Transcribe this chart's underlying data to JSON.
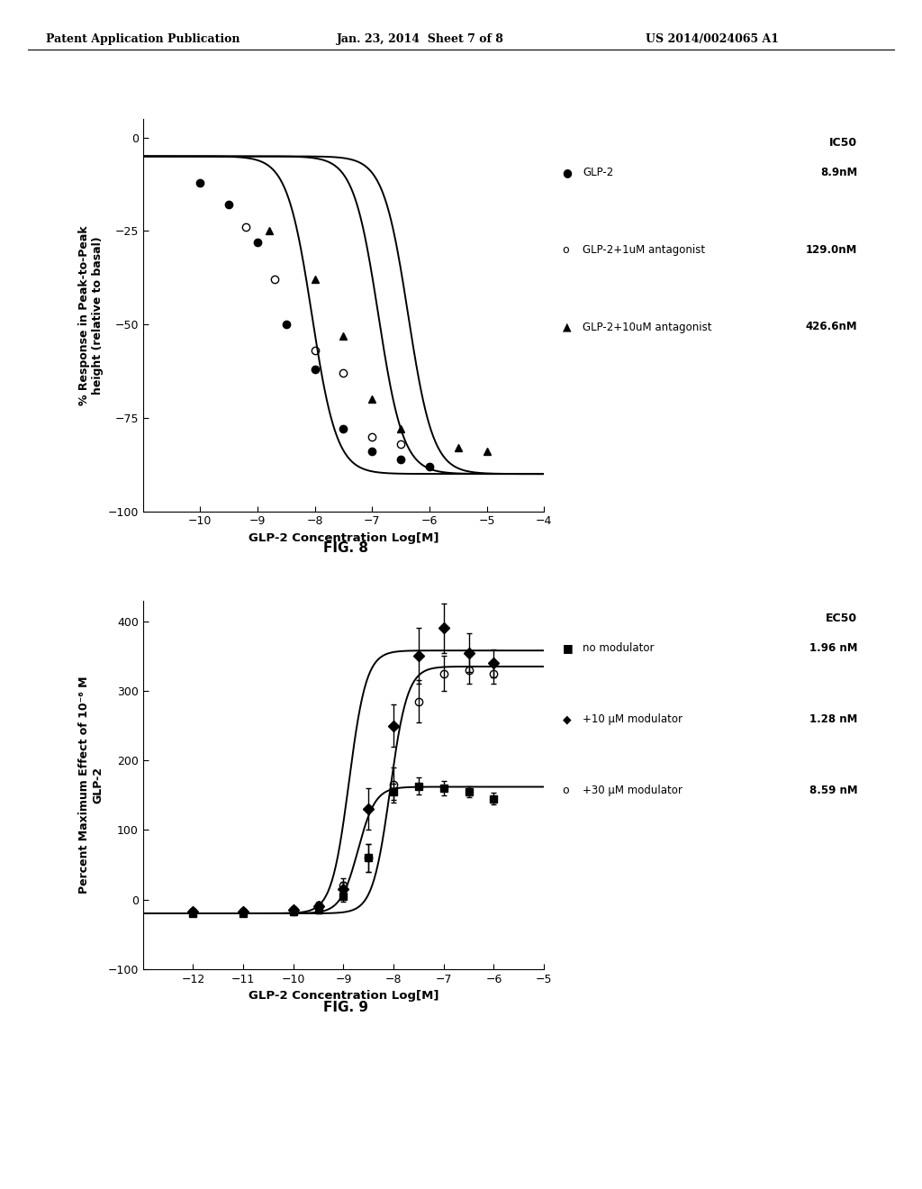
{
  "header_left": "Patent Application Publication",
  "header_mid": "Jan. 23, 2014  Sheet 7 of 8",
  "header_right": "US 2014/0024065 A1",
  "fig8": {
    "title": "FIG. 8",
    "xlabel": "GLP-2 Concentration Log[M]",
    "ylabel": "% Response in Peak-to-Peak\nheight (relative to basal)",
    "xlim": [
      -11,
      -4
    ],
    "ylim": [
      -100,
      5
    ],
    "xticks": [
      -10,
      -9,
      -8,
      -7,
      -6,
      -5,
      -4
    ],
    "yticks": [
      0,
      -25,
      -50,
      -75,
      -100
    ],
    "series": [
      {
        "label": "GLP-2",
        "ic50_label": "8.9nM",
        "marker": "o",
        "markersize": 6,
        "fillstyle": "full",
        "ic50_log": -8.05,
        "top": -5,
        "bottom": -90,
        "hill": 2.0,
        "points_x": [
          -10.0,
          -9.5,
          -9.0,
          -8.5,
          -8.0,
          -7.5,
          -7.0,
          -6.5,
          -6.0
        ],
        "points_y": [
          -12,
          -18,
          -28,
          -50,
          -62,
          -78,
          -84,
          -86,
          -88
        ]
      },
      {
        "label": "GLP-2+1uM antagonist",
        "ic50_label": "129.0nM",
        "marker": "o",
        "markersize": 6,
        "fillstyle": "none",
        "ic50_log": -6.89,
        "top": -5,
        "bottom": -90,
        "hill": 2.0,
        "points_x": [
          -9.2,
          -8.7,
          -8.0,
          -7.5,
          -7.0,
          -6.5
        ],
        "points_y": [
          -24,
          -38,
          -57,
          -63,
          -80,
          -82
        ]
      },
      {
        "label": "GLP-2+10uM antagonist",
        "ic50_label": "426.6nM",
        "marker": "^",
        "markersize": 6,
        "fillstyle": "full",
        "ic50_log": -6.37,
        "top": -5,
        "bottom": -90,
        "hill": 2.0,
        "points_x": [
          -8.8,
          -8.0,
          -7.5,
          -7.0,
          -6.5,
          -5.5,
          -5.0
        ],
        "points_y": [
          -25,
          -38,
          -53,
          -70,
          -78,
          -83,
          -84
        ]
      }
    ],
    "legend_ic50_header": "IC50",
    "legend_entries": [
      {
        "symbol": "filled_circle",
        "label": "●GLP-2",
        "value": "8.9nM"
      },
      {
        "symbol": "open_circle",
        "label": "oGLP-2+1uM antagonist",
        "value": "129.0nM"
      },
      {
        "symbol": "filled_tri",
        "label": "▲GLP-2+10uM antagonist",
        "value": "426.6nM"
      }
    ]
  },
  "fig9": {
    "title": "FIG. 9",
    "xlabel": "GLP-2 Concentration Log[M]",
    "ylabel": "Percent Maximum Effect of 10⁻⁶ M\nGLP-2",
    "xlim": [
      -13,
      -5
    ],
    "ylim": [
      -100,
      430
    ],
    "xticks": [
      -12,
      -11,
      -10,
      -9,
      -8,
      -7,
      -6,
      -5
    ],
    "yticks": [
      -100,
      0,
      100,
      200,
      300,
      400
    ],
    "series": [
      {
        "label": "no modulator",
        "ec50_label": "1.96 nM",
        "marker": "s",
        "markersize": 6,
        "fillstyle": "full",
        "ec50_log": -8.71,
        "bottom": -20,
        "top": 162,
        "hill": 2.5,
        "points_x": [
          -12,
          -11,
          -10,
          -9.5,
          -9.0,
          -8.5,
          -8.0,
          -7.5,
          -7.0,
          -6.5,
          -6.0
        ],
        "points_y": [
          -20,
          -20,
          -18,
          -15,
          5,
          60,
          155,
          163,
          160,
          155,
          145
        ],
        "yerr": [
          4,
          4,
          4,
          5,
          8,
          20,
          12,
          12,
          10,
          8,
          8
        ]
      },
      {
        "label": "+10 μM modulator",
        "ec50_label": "1.28 nM",
        "marker": "D",
        "markersize": 6,
        "fillstyle": "full",
        "ec50_log": -8.89,
        "bottom": -20,
        "top": 358,
        "hill": 2.5,
        "points_x": [
          -12,
          -11,
          -10,
          -9.5,
          -9.0,
          -8.5,
          -8.0,
          -7.5,
          -7.0,
          -6.5,
          -6.0
        ],
        "points_y": [
          -18,
          -18,
          -15,
          -10,
          15,
          130,
          250,
          350,
          390,
          355,
          340
        ],
        "yerr": [
          4,
          4,
          4,
          5,
          10,
          30,
          30,
          40,
          35,
          28,
          20
        ]
      },
      {
        "label": "+30 μM modulator",
        "ec50_label": "8.59 nM",
        "marker": "o",
        "markersize": 6,
        "fillstyle": "none",
        "ec50_log": -8.07,
        "bottom": -20,
        "top": 335,
        "hill": 2.5,
        "points_x": [
          -12,
          -11,
          -10,
          -9.5,
          -9.0,
          -8.5,
          -8.0,
          -7.5,
          -7.0,
          -6.5,
          -6.0
        ],
        "points_y": [
          -18,
          -18,
          -15,
          -8,
          20,
          60,
          165,
          285,
          325,
          330,
          325
        ],
        "yerr": [
          4,
          4,
          4,
          5,
          10,
          20,
          25,
          30,
          25,
          20,
          15
        ]
      }
    ],
    "legend_ec50_header": "EC50",
    "legend_entries": [
      {
        "symbol": "filled_square",
        "label": "■ no modulator",
        "value": "1.96 nM"
      },
      {
        "symbol": "filled_diamond",
        "label": "◆+10 μM modulator",
        "value": "1.28 nM"
      },
      {
        "symbol": "open_circle",
        "label": "o+30 μM modulator",
        "value": "8.59 nM"
      }
    ]
  },
  "background_color": "#ffffff",
  "text_color": "#000000"
}
